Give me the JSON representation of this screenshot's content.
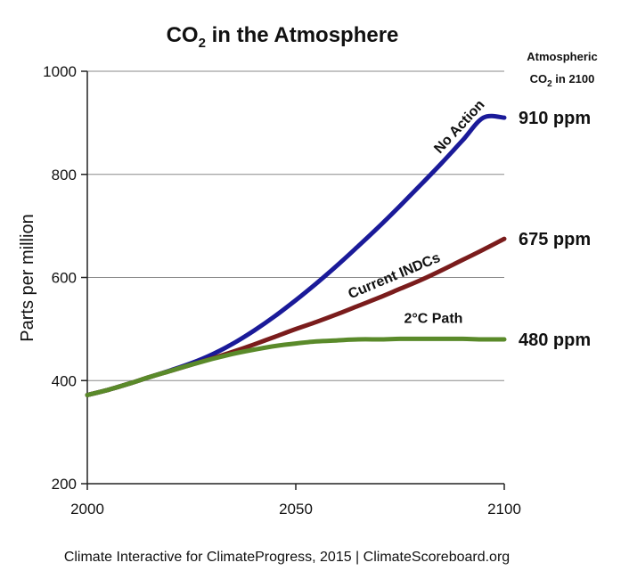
{
  "chart_data": {
    "type": "line",
    "title": {
      "pre": "CO",
      "sub": "2",
      "post": " in the Atmosphere"
    },
    "xlabel": "",
    "ylabel": "Parts per million",
    "xlim": [
      2000,
      2100
    ],
    "ylim": [
      200,
      1000
    ],
    "xticks": [
      {
        "value": 2000,
        "label": "2000"
      },
      {
        "value": 2050,
        "label": "2050"
      },
      {
        "value": 2100,
        "label": "2100"
      }
    ],
    "yticks": [
      {
        "value": 200,
        "label": "200"
      },
      {
        "value": 400,
        "label": "400"
      },
      {
        "value": 600,
        "label": "600"
      },
      {
        "value": 800,
        "label": "800"
      },
      {
        "value": 1000,
        "label": "1000"
      }
    ],
    "grid": true,
    "side_header": {
      "line1": "Atmospheric",
      "line2_pre": "CO",
      "line2_sub": "2",
      "line2_post": " in 2100"
    },
    "series": [
      {
        "name": "No Action",
        "color": "#1a1a99",
        "end_label": "910 ppm",
        "x": [
          2000,
          2005,
          2010,
          2015,
          2020,
          2025,
          2030,
          2035,
          2040,
          2045,
          2050,
          2055,
          2060,
          2065,
          2070,
          2075,
          2080,
          2085,
          2090,
          2095,
          2100
        ],
        "values": [
          372,
          382,
          394,
          407,
          420,
          434,
          451,
          472,
          497,
          525,
          556,
          589,
          624,
          661,
          699,
          739,
          780,
          822,
          866,
          910,
          910
        ]
      },
      {
        "name": "Current INDCs",
        "color": "#7a1c1c",
        "end_label": "675 ppm",
        "x": [
          2000,
          2005,
          2010,
          2015,
          2020,
          2025,
          2030,
          2035,
          2040,
          2045,
          2050,
          2055,
          2060,
          2065,
          2070,
          2075,
          2080,
          2085,
          2090,
          2095,
          2100
        ],
        "values": [
          372,
          382,
          394,
          407,
          419,
          431,
          443,
          456,
          470,
          485,
          500,
          514,
          529,
          545,
          561,
          578,
          595,
          614,
          634,
          654,
          675
        ]
      },
      {
        "name": "2°C Path",
        "color": "#5a8a2a",
        "end_label": "480 ppm",
        "x": [
          2000,
          2005,
          2010,
          2015,
          2020,
          2025,
          2030,
          2035,
          2040,
          2045,
          2050,
          2055,
          2060,
          2065,
          2070,
          2075,
          2080,
          2085,
          2090,
          2095,
          2100
        ],
        "values": [
          372,
          382,
          394,
          407,
          419,
          431,
          442,
          452,
          460,
          467,
          472,
          476,
          478,
          480,
          480,
          481,
          481,
          481,
          481,
          480,
          480
        ]
      }
    ]
  },
  "source": "Climate Interactive for ClimateProgress, 2015 | ClimateScoreboard.org"
}
